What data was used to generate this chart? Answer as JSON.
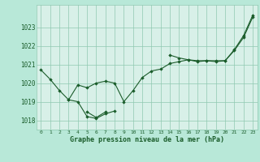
{
  "background_color": "#b8e8d8",
  "plot_bg_color": "#d8f0e8",
  "grid_color": "#90c8b0",
  "line_color": "#1a5c2a",
  "marker_color": "#1a5c2a",
  "xlabel": "Graphe pression niveau de la mer (hPa)",
  "ylim": [
    1017.5,
    1024.2
  ],
  "xlim": [
    -0.5,
    23.5
  ],
  "yticks": [
    1018,
    1019,
    1020,
    1021,
    1022,
    1023
  ],
  "xticks": [
    0,
    1,
    2,
    3,
    4,
    5,
    6,
    7,
    8,
    9,
    10,
    11,
    12,
    13,
    14,
    15,
    16,
    17,
    18,
    19,
    20,
    21,
    22,
    23
  ],
  "series": [
    [
      1020.7,
      1020.2,
      1019.6,
      1019.1,
      1019.9,
      1019.75,
      1020.0,
      1020.1,
      1020.0,
      1019.0,
      1019.6,
      1020.3,
      1020.65,
      1020.75,
      1021.05,
      1021.15,
      1021.25,
      1021.15,
      1021.2,
      1021.2,
      1021.2,
      1021.75,
      1022.45,
      1023.55
    ],
    [
      null,
      null,
      null,
      1019.1,
      1019.0,
      1018.2,
      1018.1,
      1018.35,
      1018.5,
      null,
      null,
      null,
      null,
      null,
      null,
      null,
      null,
      null,
      null,
      null,
      null,
      null,
      null,
      null
    ],
    [
      null,
      null,
      null,
      null,
      null,
      1018.45,
      1018.15,
      1018.45,
      null,
      null,
      null,
      null,
      null,
      null,
      null,
      null,
      null,
      null,
      null,
      null,
      null,
      null,
      null,
      null
    ],
    [
      null,
      null,
      null,
      null,
      null,
      null,
      null,
      null,
      null,
      null,
      null,
      null,
      null,
      null,
      1021.5,
      1021.35,
      1021.25,
      1021.2,
      1021.2,
      1021.15,
      1021.2,
      1021.8,
      1022.55,
      1023.65
    ]
  ]
}
